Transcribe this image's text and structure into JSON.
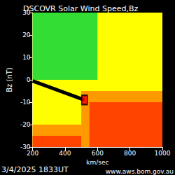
{
  "chart_data": {
    "type": "scatter",
    "title": "DSCOVR Solar Wind Speed,Bz",
    "x_label": "km/sec",
    "y_label": "Bz (nT)",
    "xlim": [
      200,
      1000
    ],
    "xticks": [
      200,
      400,
      600,
      800,
      1000
    ],
    "ylim": [
      -30,
      30
    ],
    "yticks": [
      -30,
      -20,
      -10,
      0,
      10,
      20,
      30
    ],
    "grid": false,
    "regions": [
      {
        "color": "#ffff00",
        "x": [
          200,
          1000
        ],
        "y": [
          -30,
          30
        ]
      },
      {
        "color": "#33dd33",
        "x": [
          200,
          600
        ],
        "y": [
          0,
          30
        ]
      },
      {
        "color": "#ff9900",
        "x": [
          500,
          1000
        ],
        "y": [
          -30,
          -5
        ]
      },
      {
        "color": "#ff9900",
        "x": [
          200,
          500
        ],
        "y": [
          -30,
          -20
        ]
      },
      {
        "color": "#ff4400",
        "x": [
          550,
          1000
        ],
        "y": [
          -30,
          -10
        ]
      },
      {
        "color": "#ff4400",
        "x": [
          200,
          500
        ],
        "y": [
          -30,
          -25
        ]
      }
    ],
    "series": [
      {
        "type": "line",
        "color": "#000000",
        "line_style": "solid",
        "x": [
          200,
          520
        ],
        "y": [
          -0.5,
          -9
        ]
      },
      {
        "type": "scatter",
        "marker": "square",
        "color": "#ff0000",
        "x": [
          520
        ],
        "y": [
          -9
        ]
      }
    ],
    "annotations": [
      "3/4/2025 1833UT",
      "www.aws.bom.gov.au"
    ]
  }
}
